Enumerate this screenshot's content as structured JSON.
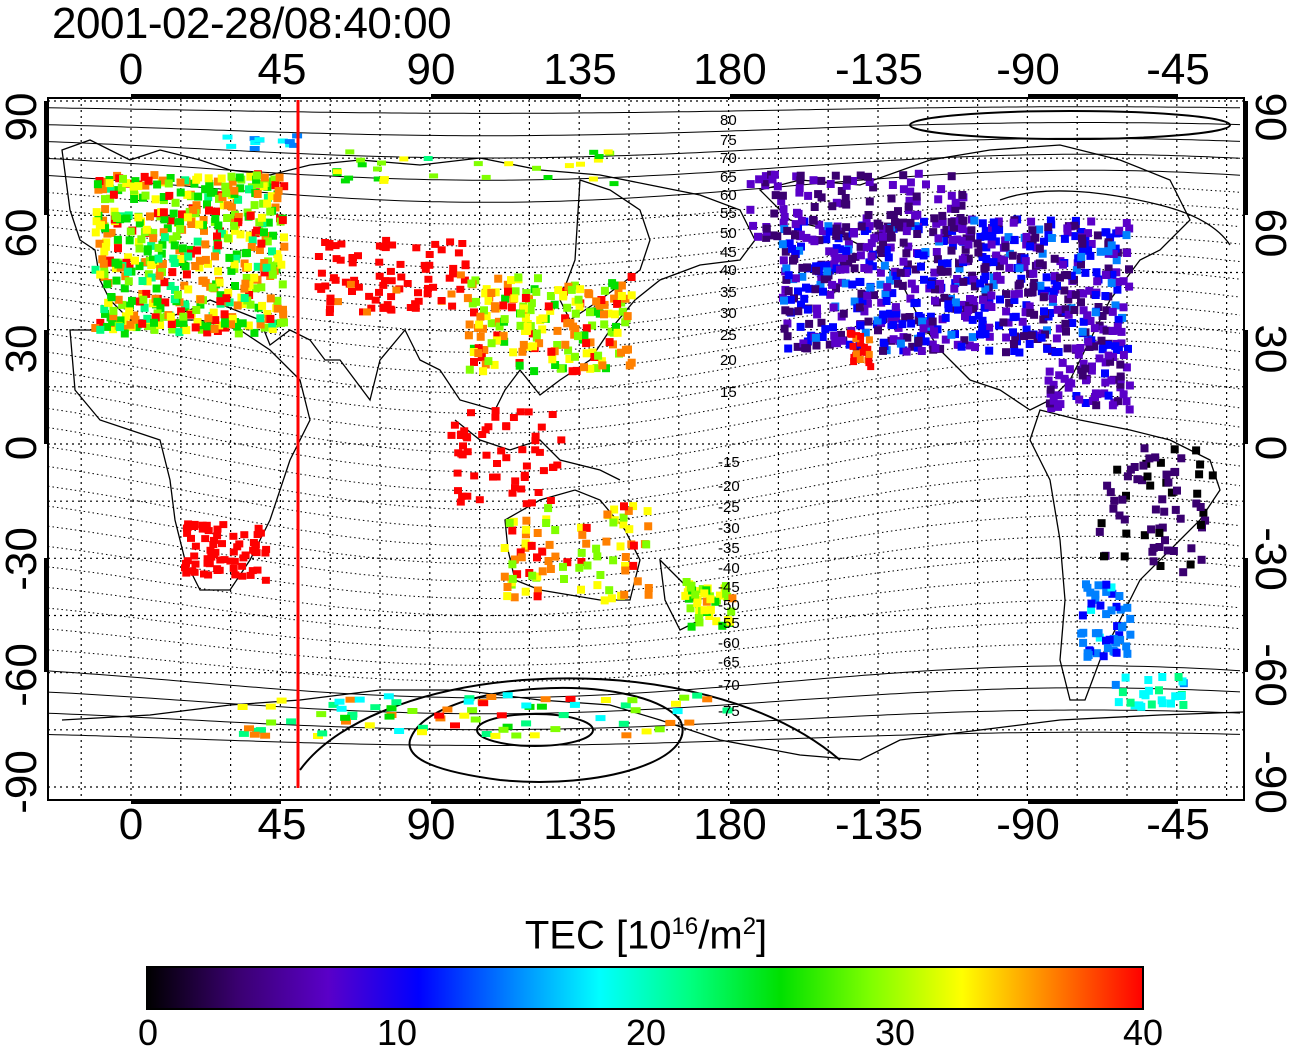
{
  "title": "2001-02-28/08:40:00",
  "map": {
    "lon_ticks_top": [
      "0",
      "45",
      "90",
      "135",
      "180",
      "-135",
      "-90",
      "-45"
    ],
    "lon_ticks_bottom": [
      "0",
      "45",
      "90",
      "135",
      "180",
      "-135",
      "-90",
      "-45"
    ],
    "lat_ticks_left": [
      "90",
      "60",
      "30",
      "0",
      "-30",
      "-60",
      "-90"
    ],
    "lat_ticks_right": [
      "90",
      "60",
      "30",
      "0",
      "-30",
      "-60",
      "-90"
    ],
    "contour_labels_north": [
      "80",
      "75",
      "70",
      "65",
      "60",
      "55",
      "50",
      "45",
      "40",
      "35",
      "30",
      "25",
      "20",
      "15"
    ],
    "contour_labels_south": [
      "-15",
      "-20",
      "-25",
      "-30",
      "-35",
      "-40",
      "-45",
      "-50",
      "-55",
      "-60",
      "-65",
      "-70",
      "-75"
    ],
    "marker_longitude": 50,
    "marker_color": "#ff0000"
  },
  "colorbar": {
    "title_main": "TEC  [10",
    "title_exp": "16",
    "title_unit": "/m",
    "title_unit_exp": "2",
    "title_close": "]",
    "min": 0,
    "max": 40,
    "ticks": [
      "0",
      "10",
      "20",
      "30",
      "40"
    ],
    "colors": [
      "#000000",
      "#3a0070",
      "#5a00c8",
      "#0000ff",
      "#0080ff",
      "#00ffff",
      "#00ff80",
      "#00e000",
      "#80ff00",
      "#ffff00",
      "#ff8000",
      "#ff0000"
    ]
  }
}
